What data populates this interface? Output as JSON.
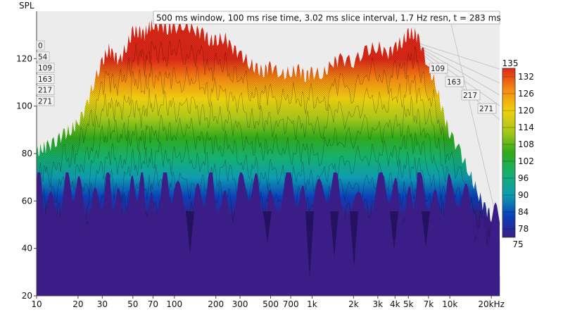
{
  "chart_data": {
    "type": "waterfall",
    "title": "500 ms window, 100 ms rise time, 3.02 ms slice interval, 1.7 Hz resn, t = 283 ms",
    "ylabel": "SPL",
    "x_scale": "log",
    "xlim": [
      10,
      23000
    ],
    "ylim": [
      20,
      140
    ],
    "x_ticks": [
      {
        "v": 10,
        "label": "10"
      },
      {
        "v": 20,
        "label": "20"
      },
      {
        "v": 30,
        "label": "30"
      },
      {
        "v": 50,
        "label": "50"
      },
      {
        "v": 70,
        "label": "70"
      },
      {
        "v": 100,
        "label": "100"
      },
      {
        "v": 200,
        "label": "200"
      },
      {
        "v": 300,
        "label": "300"
      },
      {
        "v": 500,
        "label": "500"
      },
      {
        "v": 700,
        "label": "700"
      },
      {
        "v": 1000,
        "label": "1k"
      },
      {
        "v": 2000,
        "label": "2k"
      },
      {
        "v": 3000,
        "label": "3k"
      },
      {
        "v": 4000,
        "label": "4k"
      },
      {
        "v": 5000,
        "label": "5k"
      },
      {
        "v": 7000,
        "label": "7k"
      },
      {
        "v": 10000,
        "label": "10k"
      },
      {
        "v": 20000,
        "label": "20kHz"
      }
    ],
    "y_ticks": [
      {
        "v": 20,
        "label": "20"
      },
      {
        "v": 40,
        "label": "40"
      },
      {
        "v": 60,
        "label": "60"
      },
      {
        "v": 80,
        "label": "80"
      },
      {
        "v": 100,
        "label": "100"
      },
      {
        "v": 120,
        "label": "120"
      }
    ],
    "time_slices_ms": [
      "0",
      "54",
      "109",
      "163",
      "217",
      "271"
    ],
    "time_slices_right_ms": [
      "109",
      "163",
      "217",
      "271"
    ],
    "colorbar": {
      "min": 75,
      "max": 135,
      "min_label": "75",
      "max_label": "135",
      "ticks": [
        "132",
        "126",
        "120",
        "114",
        "108",
        "102",
        "96",
        "90",
        "84",
        "78"
      ],
      "colors": [
        "#3a1d86",
        "#0b3fb8",
        "#0f9bb0",
        "#16b070",
        "#2faa1b",
        "#a8c81a",
        "#f0d010",
        "#f58a12",
        "#e02818"
      ]
    },
    "front_slice": {
      "freq": [
        10,
        11,
        12,
        14,
        16,
        18,
        20,
        23,
        26,
        30,
        33,
        36,
        40,
        45,
        50,
        55,
        60,
        65,
        70,
        80,
        90,
        100,
        120,
        140,
        160,
        180,
        200,
        230,
        260,
        300,
        350,
        400,
        450,
        500,
        600,
        700,
        800,
        900,
        1000,
        1200,
        1400,
        1600,
        2000,
        2500,
        3000,
        3500,
        4000,
        4500,
        5000,
        5500,
        6000,
        7000,
        8000,
        9000,
        10000,
        12000,
        14000,
        16000,
        18000,
        20000,
        23000
      ],
      "spl": [
        80,
        82,
        83,
        86,
        88,
        90,
        93,
        100,
        110,
        118,
        124,
        122,
        119,
        125,
        131,
        132,
        130,
        133,
        134,
        134,
        133,
        133,
        134,
        132,
        131,
        128,
        127,
        129,
        125,
        122,
        118,
        115,
        115,
        117,
        113,
        114,
        115,
        113,
        114,
        113,
        118,
        120,
        119,
        123,
        125,
        122,
        125,
        127,
        130,
        131,
        128,
        116,
        108,
        96,
        89,
        80,
        71,
        63,
        57,
        54,
        51
      ]
    }
  }
}
